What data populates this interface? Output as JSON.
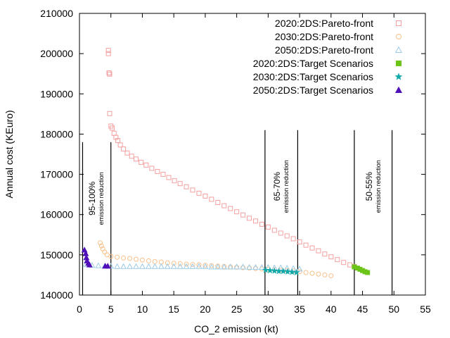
{
  "chart_data": {
    "type": "scatter",
    "xlabel": "CO_2 emission (kt)",
    "ylabel": "Annual cost (KEuro)",
    "xlim": [
      0,
      55
    ],
    "ylim": [
      140000,
      210000
    ],
    "xticks": [
      0,
      5,
      10,
      15,
      20,
      25,
      30,
      35,
      40,
      45,
      50,
      55
    ],
    "yticks": [
      140000,
      150000,
      160000,
      170000,
      180000,
      190000,
      200000,
      210000
    ],
    "grid": false,
    "legend_position": "top-right",
    "series": [
      {
        "name": "2020:2DS:Pareto-front",
        "marker": "square-open",
        "color": "#f4a0a0",
        "points": [
          [
            4.6,
            200800
          ],
          [
            4.6,
            200000
          ],
          [
            4.7,
            195200
          ],
          [
            4.8,
            194900
          ],
          [
            4.8,
            185100
          ],
          [
            5.0,
            182000
          ],
          [
            5.2,
            181500
          ],
          [
            5.5,
            180200
          ],
          [
            5.8,
            179200
          ],
          [
            6.1,
            178400
          ],
          [
            6.5,
            177300
          ],
          [
            7.0,
            176300
          ],
          [
            7.6,
            175300
          ],
          [
            8.3,
            174500
          ],
          [
            9.0,
            173800
          ],
          [
            9.8,
            173000
          ],
          [
            10.6,
            172300
          ],
          [
            11.5,
            171500
          ],
          [
            12.4,
            170700
          ],
          [
            13.3,
            170000
          ],
          [
            14.2,
            169200
          ],
          [
            15.1,
            168400
          ],
          [
            16.0,
            167700
          ],
          [
            17.0,
            166900
          ],
          [
            18.0,
            166100
          ],
          [
            19.0,
            165300
          ],
          [
            20.0,
            164600
          ],
          [
            21.0,
            163800
          ],
          [
            22.0,
            163000
          ],
          [
            23.0,
            162200
          ],
          [
            24.0,
            161500
          ],
          [
            25.0,
            160700
          ],
          [
            26.0,
            159900
          ],
          [
            27.0,
            159100
          ],
          [
            28.0,
            158400
          ],
          [
            29.0,
            157600
          ],
          [
            30.0,
            156900
          ],
          [
            31.0,
            156100
          ],
          [
            32.0,
            155400
          ],
          [
            33.0,
            154700
          ],
          [
            34.0,
            154000
          ],
          [
            35.0,
            153200
          ],
          [
            36.0,
            152400
          ],
          [
            37.0,
            151700
          ],
          [
            38.0,
            151000
          ],
          [
            39.0,
            150200
          ],
          [
            40.0,
            149500
          ],
          [
            41.0,
            148800
          ],
          [
            42.0,
            148100
          ],
          [
            43.0,
            147500
          ],
          [
            43.7,
            147100
          ]
        ]
      },
      {
        "name": "2030:2DS:Pareto-front",
        "marker": "circle-open",
        "color": "#f7c08a",
        "points": [
          [
            3.3,
            153000
          ],
          [
            3.5,
            152200
          ],
          [
            3.7,
            151500
          ],
          [
            4.0,
            150700
          ],
          [
            4.4,
            150000
          ],
          [
            5.0,
            149600
          ],
          [
            6.0,
            149400
          ],
          [
            7.0,
            149200
          ],
          [
            8.0,
            149100
          ],
          [
            9.0,
            148900
          ],
          [
            10.0,
            148700
          ],
          [
            11.0,
            148500
          ],
          [
            12.0,
            148300
          ],
          [
            13.0,
            148200
          ],
          [
            14.0,
            148000
          ],
          [
            15.0,
            147900
          ],
          [
            16.0,
            147800
          ],
          [
            17.0,
            147700
          ],
          [
            18.0,
            147600
          ],
          [
            19.0,
            147500
          ],
          [
            20.0,
            147400
          ],
          [
            21.0,
            147300
          ],
          [
            22.0,
            147200
          ],
          [
            23.0,
            147100
          ],
          [
            24.0,
            147000
          ],
          [
            25.0,
            146900
          ],
          [
            26.0,
            146800
          ],
          [
            27.0,
            146700
          ],
          [
            28.0,
            146600
          ],
          [
            29.0,
            146500
          ],
          [
            30.0,
            146400
          ],
          [
            31.0,
            146300
          ],
          [
            32.0,
            146200
          ],
          [
            33.0,
            146100
          ],
          [
            34.0,
            146000
          ],
          [
            35.0,
            145800
          ],
          [
            36.0,
            145600
          ],
          [
            37.0,
            145400
          ],
          [
            38.0,
            145200
          ],
          [
            39.0,
            145000
          ],
          [
            40.0,
            144800
          ]
        ]
      },
      {
        "name": "2050:2DS:Pareto-front",
        "marker": "triangle-open",
        "color": "#9ccbe8",
        "points": [
          [
            1.0,
            147600
          ],
          [
            2.0,
            147400
          ],
          [
            3.0,
            147300
          ],
          [
            4.0,
            147200
          ],
          [
            5.0,
            147200
          ],
          [
            6.0,
            147100
          ],
          [
            7.0,
            147100
          ],
          [
            8.0,
            147100
          ],
          [
            9.0,
            147100
          ],
          [
            10.0,
            147100
          ],
          [
            11.0,
            147100
          ],
          [
            12.0,
            147100
          ],
          [
            13.0,
            147100
          ],
          [
            14.0,
            147100
          ],
          [
            15.0,
            147100
          ],
          [
            16.0,
            147100
          ],
          [
            17.0,
            147100
          ],
          [
            18.0,
            147100
          ],
          [
            19.0,
            147100
          ],
          [
            20.0,
            147100
          ],
          [
            21.0,
            147000
          ],
          [
            22.0,
            147000
          ],
          [
            23.0,
            147000
          ],
          [
            24.0,
            147000
          ],
          [
            25.0,
            147000
          ],
          [
            26.0,
            147000
          ],
          [
            27.0,
            146900
          ],
          [
            28.0,
            146900
          ],
          [
            29.0,
            146900
          ],
          [
            30.0,
            146900
          ],
          [
            31.0,
            146800
          ],
          [
            32.0,
            146800
          ],
          [
            33.0,
            146700
          ],
          [
            34.0,
            146600
          ],
          [
            35.0,
            146500
          ]
        ]
      },
      {
        "name": "2020:2DS:Target Scenarios",
        "marker": "square-filled",
        "color": "#6cc418",
        "points": [
          [
            43.7,
            147000
          ],
          [
            44.2,
            146700
          ],
          [
            44.6,
            146400
          ],
          [
            45.0,
            146100
          ],
          [
            45.4,
            145800
          ],
          [
            45.8,
            145600
          ]
        ]
      },
      {
        "name": "2030:2DS:Target Scenarios",
        "marker": "star-filled",
        "color": "#10a8a8",
        "points": [
          [
            29.6,
            146200
          ],
          [
            30.3,
            146100
          ],
          [
            31.0,
            146000
          ],
          [
            31.7,
            145900
          ],
          [
            32.4,
            145900
          ],
          [
            33.1,
            145800
          ],
          [
            33.8,
            145700
          ],
          [
            34.5,
            145600
          ]
        ]
      },
      {
        "name": "2050:2DS:Target Scenarios",
        "marker": "triangle-filled",
        "color": "#5010b8",
        "points": [
          [
            0.8,
            151200
          ],
          [
            1.0,
            150300
          ],
          [
            1.1,
            149300
          ],
          [
            1.2,
            148500
          ],
          [
            1.4,
            147900
          ],
          [
            1.6,
            147500
          ],
          [
            4.1,
            147200
          ],
          [
            4.5,
            147200
          ]
        ]
      }
    ],
    "vertical_lines": [
      {
        "x": 0.5,
        "ymax": 178000
      },
      {
        "x": 5.0,
        "ymax": 178000
      },
      {
        "x": 29.5,
        "ymax": 181000
      },
      {
        "x": 34.7,
        "ymax": 181000
      },
      {
        "x": 43.7,
        "ymax": 181000
      },
      {
        "x": 49.7,
        "ymax": 181000
      }
    ],
    "annotations": [
      {
        "line1": "95-100%",
        "line2": "emission reduction",
        "x": 2.7,
        "y": 164000
      },
      {
        "line1": "65-70%",
        "line2": "emission reduction",
        "x": 32.1,
        "y": 167000
      },
      {
        "line1": "50-55%",
        "line2": "emission reduction",
        "x": 46.7,
        "y": 167000
      }
    ]
  }
}
